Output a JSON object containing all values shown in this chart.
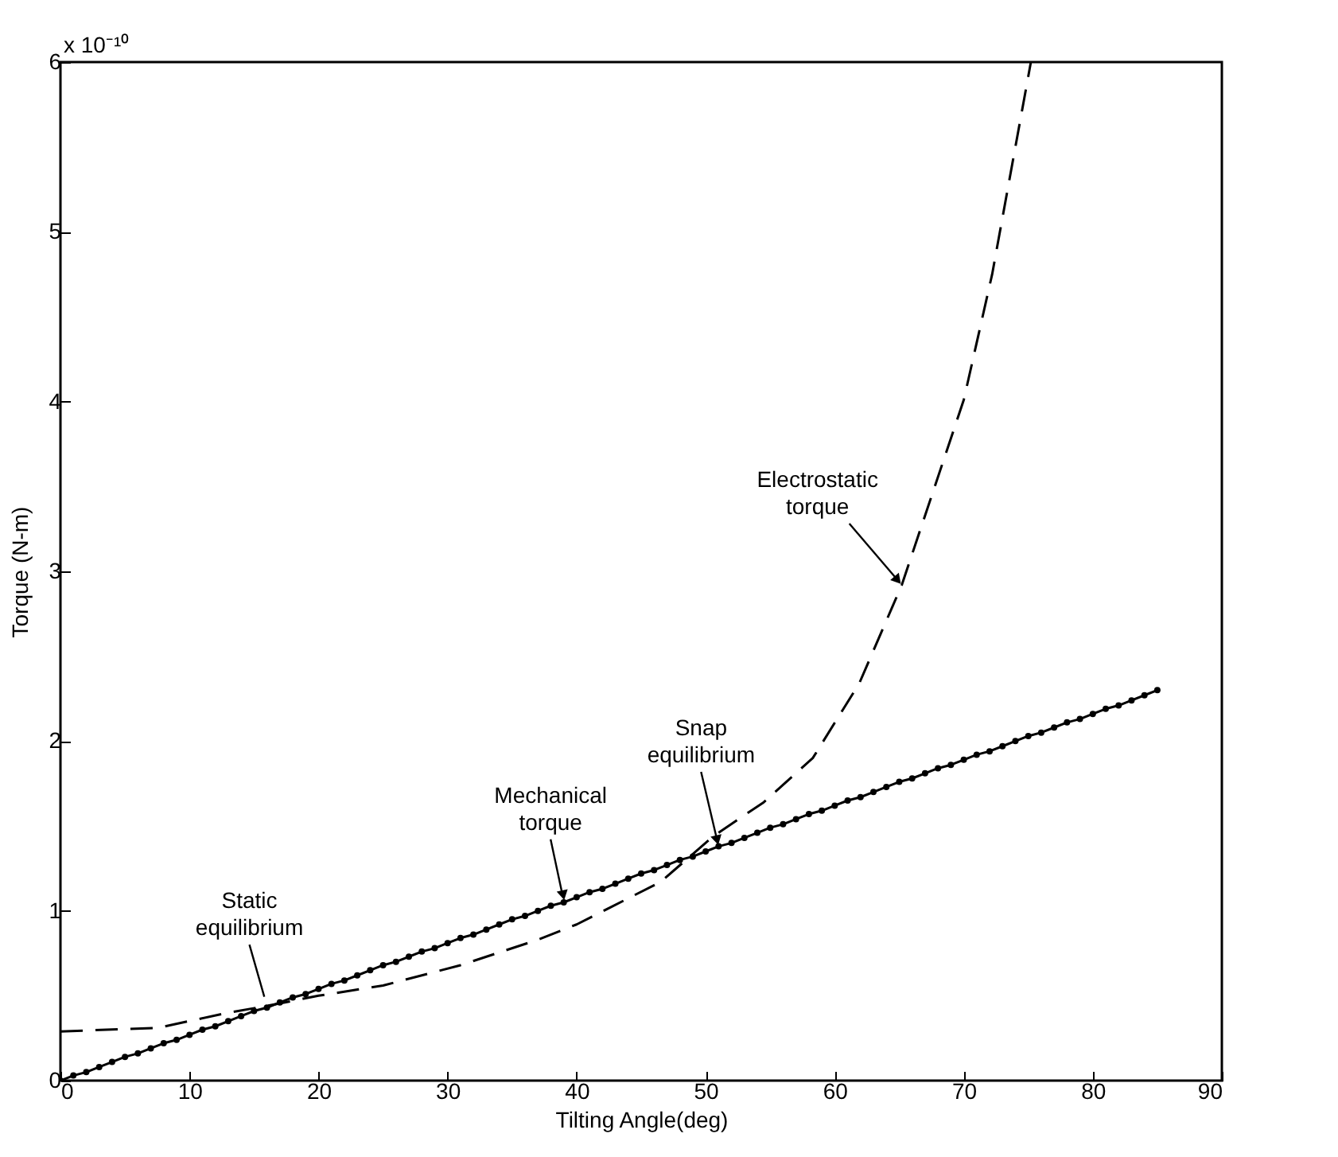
{
  "chart_data": {
    "type": "line",
    "xlabel": "Tilting Angle(deg)",
    "ylabel": "Torque (N-m)",
    "xlim": [
      0,
      90
    ],
    "ylim": [
      0,
      6
    ],
    "xticks": [
      0,
      10,
      20,
      30,
      40,
      50,
      60,
      70,
      80,
      90
    ],
    "yticks": [
      0,
      1,
      2,
      3,
      4,
      5,
      6
    ],
    "grid": false,
    "annotations": [
      "x 10⁻¹⁰",
      {
        "text": "Static\nequilibrium",
        "x": 16,
        "y": 0.44
      },
      {
        "text": "Mechanical\ntorque",
        "x": 39,
        "y": 1.06
      },
      {
        "text": "Snap\nequilibrium",
        "x": 51,
        "y": 1.38
      },
      {
        "text": "Electrostatic\ntorque",
        "x": 65.2,
        "y": 2.92
      }
    ],
    "series": [
      {
        "color": "#000000",
        "marker": "circle",
        "line_style": "solid",
        "x": [
          0,
          1,
          2,
          3,
          4,
          5,
          6,
          7,
          8,
          9,
          10,
          11,
          12,
          13,
          14,
          15,
          16,
          17,
          18,
          19,
          20,
          21,
          22,
          23,
          24,
          25,
          26,
          27,
          28,
          29,
          30,
          31,
          32,
          33,
          34,
          35,
          36,
          37,
          38,
          39,
          40,
          41,
          42,
          43,
          44,
          45,
          46,
          47,
          48,
          49,
          50,
          51,
          52,
          53,
          54,
          55,
          56,
          57,
          58,
          59,
          60,
          61,
          62,
          63,
          64,
          65,
          66,
          67,
          68,
          69,
          70,
          71,
          72,
          73,
          74,
          75,
          76,
          77,
          78,
          79,
          80,
          81,
          82,
          83,
          84,
          85
        ],
        "values": [
          0,
          0.03,
          0.05,
          0.08,
          0.11,
          0.14,
          0.16,
          0.19,
          0.22,
          0.24,
          0.27,
          0.3,
          0.32,
          0.35,
          0.38,
          0.41,
          0.43,
          0.46,
          0.49,
          0.51,
          0.54,
          0.57,
          0.59,
          0.62,
          0.65,
          0.68,
          0.7,
          0.73,
          0.76,
          0.78,
          0.81,
          0.84,
          0.86,
          0.89,
          0.92,
          0.95,
          0.97,
          1.0,
          1.03,
          1.05,
          1.08,
          1.11,
          1.13,
          1.16,
          1.19,
          1.22,
          1.24,
          1.27,
          1.3,
          1.32,
          1.35,
          1.38,
          1.4,
          1.43,
          1.46,
          1.49,
          1.51,
          1.54,
          1.57,
          1.59,
          1.62,
          1.65,
          1.67,
          1.7,
          1.73,
          1.76,
          1.78,
          1.81,
          1.84,
          1.86,
          1.89,
          1.92,
          1.94,
          1.97,
          2.0,
          2.03,
          2.05,
          2.08,
          2.11,
          2.13,
          2.16,
          2.19,
          2.21,
          2.24,
          2.27,
          2.3
        ]
      },
      {
        "color": "#000000",
        "marker": "none",
        "line_style": "dashed",
        "x": [
          0,
          7.5,
          13,
          16,
          20,
          25,
          31,
          37,
          40,
          46.5,
          50.6,
          54.5,
          58.3,
          61.9,
          65.2,
          70,
          72.2,
          75.2
        ],
        "values": [
          0.29,
          0.31,
          0.4,
          0.44,
          0.5,
          0.56,
          0.68,
          0.83,
          0.92,
          1.17,
          1.44,
          1.64,
          1.9,
          2.34,
          2.92,
          4.01,
          4.75,
          6
        ]
      }
    ]
  }
}
